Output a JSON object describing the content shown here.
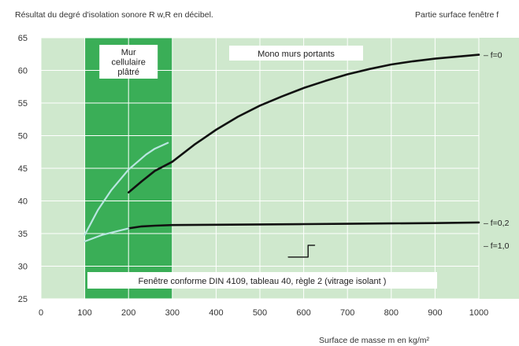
{
  "chart_data": {
    "type": "line",
    "title": "",
    "ylabel": "Résultat du degré d'isolation sonore R w,R en décibel.",
    "xlabel": "Surface de masse m en kg/m²",
    "right_title": "Partie surface fenêtre f",
    "xlim": [
      0,
      1000
    ],
    "ylim": [
      25,
      65
    ],
    "x_ticks": [
      "0",
      "100",
      "200",
      "300",
      "400",
      "500",
      "600",
      "700",
      "800",
      "900",
      "1000"
    ],
    "y_ticks": [
      "25",
      "30",
      "35",
      "40",
      "45",
      "50",
      "55",
      "60",
      "65"
    ],
    "grid": true,
    "region": {
      "label": "Mur\ncellulaire\nplâtré",
      "x_range": [
        100,
        300
      ]
    },
    "annotations": {
      "mono": "Mono murs portants",
      "window": "Fenêtre conforme DIN 4109, tableau 40, règle 2 (vitrage isolant )"
    },
    "series": [
      {
        "name": "f=0",
        "style": "dark",
        "x": [
          200,
          230,
          260,
          300,
          350,
          400,
          450,
          500,
          550,
          600,
          650,
          700,
          750,
          800,
          850,
          900,
          950,
          1000
        ],
        "y": [
          41.3,
          43.0,
          44.6,
          46.0,
          48.6,
          50.9,
          52.9,
          54.6,
          56.0,
          57.3,
          58.4,
          59.4,
          60.2,
          60.9,
          61.4,
          61.8,
          62.1,
          62.4
        ]
      },
      {
        "name": "f=0,2",
        "style": "dark",
        "x": [
          200,
          230,
          260,
          300,
          400,
          500,
          600,
          700,
          800,
          900,
          1000
        ],
        "y": [
          35.8,
          36.1,
          36.2,
          36.3,
          36.35,
          36.4,
          36.45,
          36.5,
          36.55,
          36.6,
          36.7
        ]
      },
      {
        "name": "f=1,0",
        "style": "dark",
        "x": [
          565,
          610,
          610,
          625
        ],
        "y": [
          31.4,
          31.4,
          33.2,
          33.2
        ]
      },
      {
        "name": "",
        "style": "light",
        "x": [
          100,
          130,
          160,
          200,
          240,
          260,
          290
        ],
        "y": [
          34.8,
          38.6,
          41.6,
          44.8,
          47.1,
          48.0,
          48.9
        ]
      },
      {
        "name": "",
        "style": "light",
        "x": [
          100,
          140,
          200
        ],
        "y": [
          33.8,
          34.8,
          35.8
        ]
      }
    ],
    "series_labels": [
      {
        "text": "– f=0",
        "y": 62.4
      },
      {
        "text": "– f=0,2",
        "y": 36.7
      },
      {
        "text": "– f=1,0",
        "y": 33.2
      }
    ],
    "colors": {
      "plot_bg": "#cfe8cd",
      "region": "#3aae57",
      "grid": "#ffffff",
      "dark_line": "#111111",
      "light_line": "#b9e6e1",
      "text": "#333333"
    }
  }
}
